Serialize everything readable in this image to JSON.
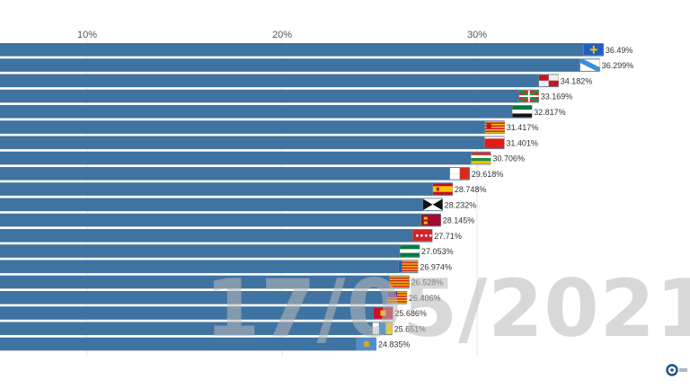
{
  "chart_data": {
    "type": "bar",
    "orientation": "horizontal",
    "date": "17/05/2021",
    "xlim": [
      0,
      36.5
    ],
    "x_ticks": [
      10,
      20,
      30
    ],
    "x_tick_labels": [
      "10%",
      "20%",
      "30%"
    ],
    "grid": true,
    "bar_color": "#3f73a1",
    "values": [
      36.49,
      36.299,
      34.182,
      33.169,
      32.817,
      31.417,
      31.401,
      30.706,
      29.618,
      28.748,
      28.232,
      28.145,
      27.71,
      27.053,
      26.974,
      26.528,
      26.406,
      25.686,
      25.651,
      24.835
    ],
    "value_labels": [
      "36.49%",
      "36.299%",
      "34.182%",
      "33.169%",
      "32.817%",
      "31.417%",
      "31.401%",
      "30.706%",
      "29.618%",
      "28.748%",
      "28.232%",
      "28.145%",
      "27.71%",
      "27.053%",
      "26.974%",
      "26.528%",
      "26.406%",
      "25.686%",
      "25.651%",
      "24.835%"
    ],
    "flag_icons": [
      "asturias-flag-icon",
      "galicia-flag-icon",
      "castilla-leon-flag-icon",
      "pais-vasco-flag-icon",
      "extremadura-flag-icon",
      "aragon-flag-icon",
      "cantabria-flag-icon",
      "la-rioja-flag-icon",
      "castilla-la-mancha-flag-icon",
      "spain-flag-icon",
      "ceuta-flag-icon",
      "murcia-flag-icon",
      "madrid-flag-icon",
      "andalucia-flag-icon",
      "comunidad-valenciana-flag-icon",
      "cataluna-flag-icon",
      "baleares-flag-icon",
      "navarra-flag-icon",
      "canarias-flag-icon",
      "melilla-flag-icon"
    ]
  }
}
